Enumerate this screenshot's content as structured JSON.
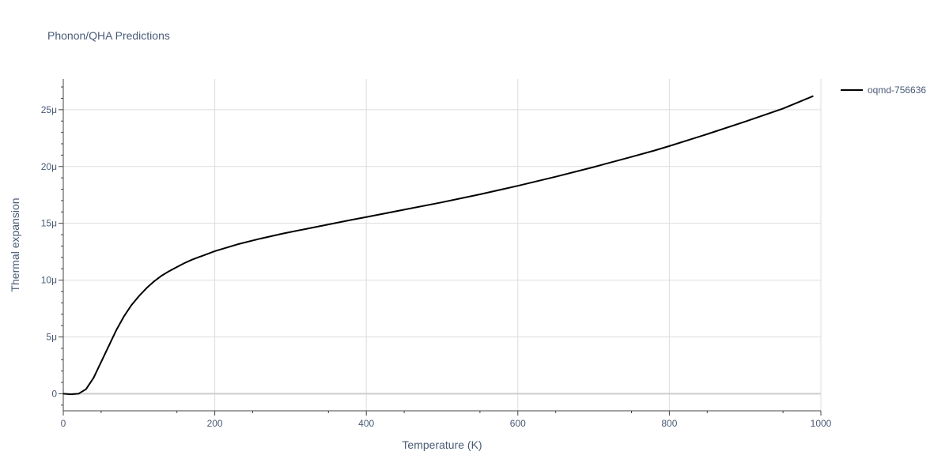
{
  "chart_data": {
    "type": "line",
    "title": "Phonon/QHA Predictions",
    "xlabel": "Temperature (K)",
    "ylabel": "Thermal expansion",
    "xlim": [
      0,
      1000
    ],
    "ylim": [
      -1.5e-06,
      2.77e-05
    ],
    "x_ticks": [
      0,
      200,
      400,
      600,
      800,
      1000
    ],
    "x_tick_labels": [
      "0",
      "200",
      "400",
      "600",
      "800",
      "1000"
    ],
    "y_ticks": [
      0,
      5e-06,
      1e-05,
      1.5e-05,
      2e-05,
      2.5e-05
    ],
    "y_tick_labels": [
      "0",
      "5μ",
      "10μ",
      "15μ",
      "20μ",
      "25μ"
    ],
    "grid": true,
    "legend_position": "top-right",
    "series": [
      {
        "name": "oqmd-756636",
        "color": "#000000",
        "x": [
          0,
          10,
          20,
          30,
          40,
          50,
          60,
          70,
          80,
          90,
          100,
          110,
          120,
          130,
          140,
          150,
          160,
          170,
          180,
          190,
          200,
          230,
          260,
          290,
          320,
          350,
          380,
          400,
          450,
          500,
          550,
          600,
          650,
          700,
          750,
          780,
          800,
          850,
          900,
          950,
          990
        ],
        "values": [
          0,
          -5e-08,
          0,
          4e-07,
          1.4e-06,
          2.8e-06,
          4.2e-06,
          5.6e-06,
          6.8e-06,
          7.8e-06,
          8.6e-06,
          9.3e-06,
          9.9e-06,
          1.04e-05,
          1.08e-05,
          1.115e-05,
          1.15e-05,
          1.18e-05,
          1.205e-05,
          1.23e-05,
          1.255e-05,
          1.315e-05,
          1.365e-05,
          1.41e-05,
          1.45e-05,
          1.49e-05,
          1.53e-05,
          1.555e-05,
          1.62e-05,
          1.685e-05,
          1.755e-05,
          1.83e-05,
          1.91e-05,
          1.995e-05,
          2.085e-05,
          2.14e-05,
          2.18e-05,
          2.285e-05,
          2.395e-05,
          2.51e-05,
          2.62e-05
        ]
      }
    ]
  }
}
